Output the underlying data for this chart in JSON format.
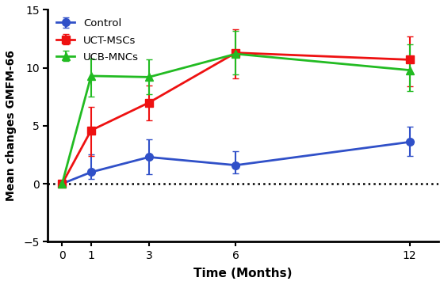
{
  "x": [
    0,
    1,
    3,
    6,
    12
  ],
  "control": {
    "y": [
      0,
      1.0,
      2.3,
      1.6,
      3.6
    ],
    "yerr_low": [
      0,
      0.6,
      1.5,
      0.7,
      1.2
    ],
    "yerr_high": [
      0,
      1.5,
      1.5,
      1.2,
      1.3
    ],
    "color": "#3050C8",
    "marker": "o",
    "label": "Control"
  },
  "uct_mscs": {
    "y": [
      0,
      4.6,
      7.0,
      11.3,
      10.7
    ],
    "yerr_low": [
      0,
      2.2,
      1.5,
      2.2,
      2.3
    ],
    "yerr_high": [
      0,
      2.0,
      1.5,
      2.0,
      2.0
    ],
    "color": "#EE1111",
    "marker": "s",
    "label": "UCT-MSCs"
  },
  "ucb_mncs": {
    "y": [
      0,
      9.3,
      9.2,
      11.2,
      9.8
    ],
    "yerr_low": [
      0,
      1.8,
      1.5,
      1.8,
      1.8
    ],
    "yerr_high": [
      0,
      1.5,
      1.5,
      2.0,
      2.2
    ],
    "color": "#22BB22",
    "marker": "^",
    "label": "UCB-MNCs"
  },
  "xlabel": "Time (Months)",
  "ylabel": "Mean changes GMFM-66",
  "ylim": [
    -5,
    15
  ],
  "yticks": [
    -5,
    0,
    5,
    10,
    15
  ],
  "xticks": [
    0,
    1,
    3,
    6,
    12
  ],
  "linewidth": 2.0,
  "markersize": 7,
  "capsize": 3,
  "elinewidth": 1.5,
  "background_color": "#ffffff"
}
